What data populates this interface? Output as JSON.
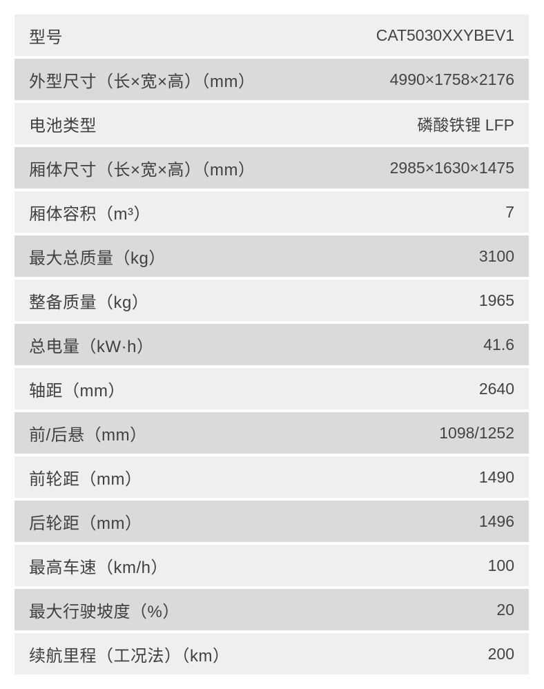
{
  "page": {
    "background_color": "#ffffff",
    "text_color": "#404040"
  },
  "table": {
    "row_color_odd": "#efefef",
    "row_color_even": "#dadada",
    "rows": [
      {
        "label": "型号",
        "value": "CAT5030XXYBEV1"
      },
      {
        "label": "外型尺寸（长×宽×高）（mm）",
        "value": "4990×1758×2176"
      },
      {
        "label": "电池类型",
        "value": "磷酸铁锂 LFP"
      },
      {
        "label": "厢体尺寸（长×宽×高）（mm）",
        "value": "2985×1630×1475"
      },
      {
        "label": "厢体容积（m³）",
        "value": "7"
      },
      {
        "label": "最大总质量（kg）",
        "value": "3100"
      },
      {
        "label": "整备质量（kg）",
        "value": "1965"
      },
      {
        "label": "总电量（kW·h）",
        "value": "41.6"
      },
      {
        "label": "轴距（mm）",
        "value": "2640"
      },
      {
        "label": "前/后悬（mm）",
        "value": "1098/1252"
      },
      {
        "label": "前轮距（mm）",
        "value": "1490"
      },
      {
        "label": "后轮距（mm）",
        "value": "1496"
      },
      {
        "label": "最高车速（km/h）",
        "value": "100"
      },
      {
        "label": "最大行驶坡度（%）",
        "value": "20"
      },
      {
        "label": "续航里程（工况法）（km）",
        "value": "200"
      }
    ]
  }
}
